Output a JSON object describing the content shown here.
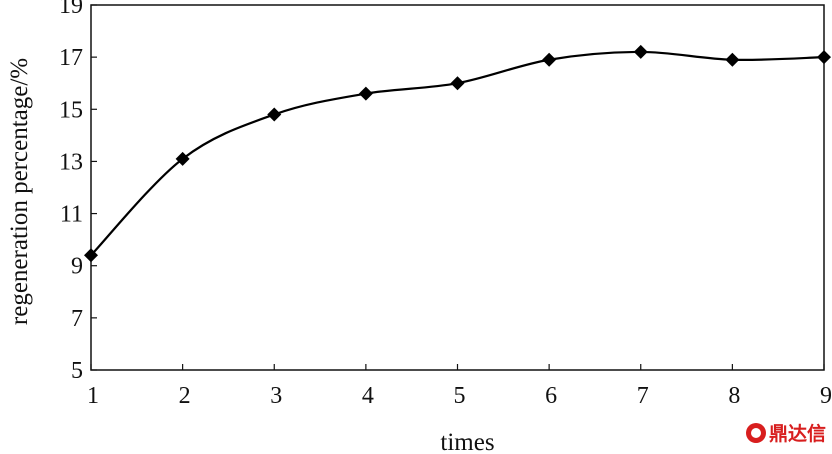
{
  "chart_data": {
    "type": "line",
    "title": "",
    "xlabel": "times",
    "ylabel": "regeneration percentage/%",
    "x": [
      1,
      2,
      3,
      4,
      5,
      6,
      7,
      8,
      9
    ],
    "series": [
      {
        "values": [
          9.4,
          13.1,
          14.8,
          15.6,
          16.0,
          16.9,
          17.2,
          16.9,
          17.0
        ]
      }
    ],
    "xlim": [
      1,
      9
    ],
    "ylim": [
      5,
      19
    ],
    "xticks": [
      "1",
      "2",
      "3",
      "4",
      "5",
      "6",
      "7",
      "8",
      "9"
    ],
    "yticks": [
      "5",
      "7",
      "9",
      "11",
      "13",
      "15",
      "17",
      "19"
    ],
    "marker": "diamond",
    "grid": false,
    "line_color": "#000000"
  },
  "watermark": {
    "text": "鼎达信"
  }
}
